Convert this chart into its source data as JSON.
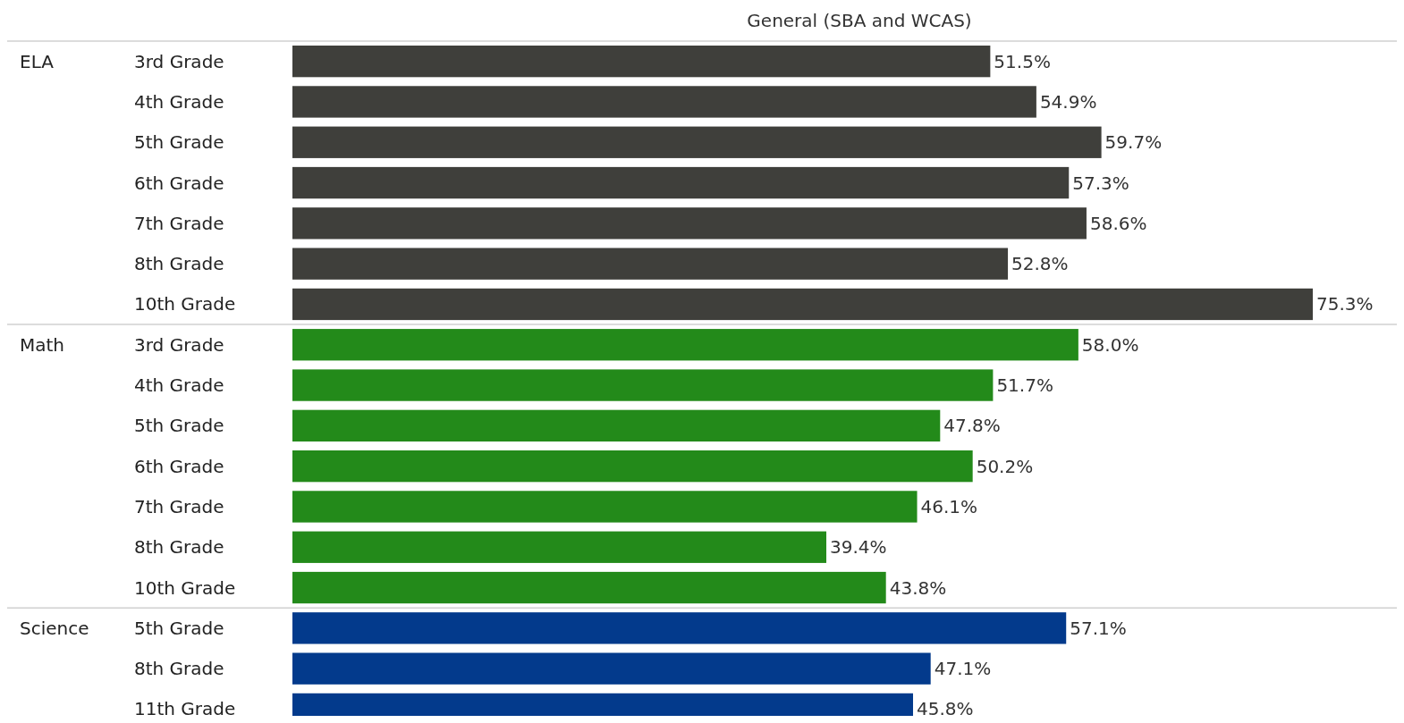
{
  "chart_data": {
    "type": "bar",
    "title": "General (SBA and WCAS)",
    "orientation": "horizontal",
    "annotations": [
      "ELA",
      "Math",
      "Science"
    ],
    "categories": [
      "3rd Grade",
      "4th Grade",
      "5th Grade",
      "6th Grade",
      "7th Grade",
      "8th Grade",
      "10th Grade",
      "3rd Grade",
      "4th Grade",
      "5th Grade",
      "6th Grade",
      "7th Grade",
      "8th Grade",
      "10th Grade",
      "5th Grade",
      "8th Grade",
      "11th Grade"
    ],
    "series": [
      {
        "color": "#3f3f3b",
        "values": [
          51.5,
          54.9,
          59.7,
          57.3,
          58.6,
          52.8,
          75.3,
          null,
          null,
          null,
          null,
          null,
          null,
          null,
          null,
          null,
          null
        ],
        "value_labels": [
          "51.5%",
          "54.9%",
          "59.7%",
          "57.3%",
          "58.6%",
          "52.8%",
          "75.3%",
          null,
          null,
          null,
          null,
          null,
          null,
          null,
          null,
          null,
          null
        ]
      },
      {
        "color": "#238a1a",
        "values": [
          null,
          null,
          null,
          null,
          null,
          null,
          null,
          58.0,
          51.7,
          47.8,
          50.2,
          46.1,
          39.4,
          43.8,
          null,
          null,
          null
        ],
        "value_labels": [
          null,
          null,
          null,
          null,
          null,
          null,
          null,
          "58.0%",
          "51.7%",
          "47.8%",
          "50.2%",
          "46.1%",
          "39.4%",
          "43.8%",
          null,
          null,
          null
        ]
      },
      {
        "color": "#033a8c",
        "values": [
          null,
          null,
          null,
          null,
          null,
          null,
          null,
          null,
          null,
          null,
          null,
          null,
          null,
          null,
          57.1,
          47.1,
          45.8
        ],
        "value_labels": [
          null,
          null,
          null,
          null,
          null,
          null,
          null,
          null,
          null,
          null,
          null,
          null,
          null,
          null,
          "57.1%",
          "47.1%",
          "45.8%"
        ]
      }
    ]
  }
}
